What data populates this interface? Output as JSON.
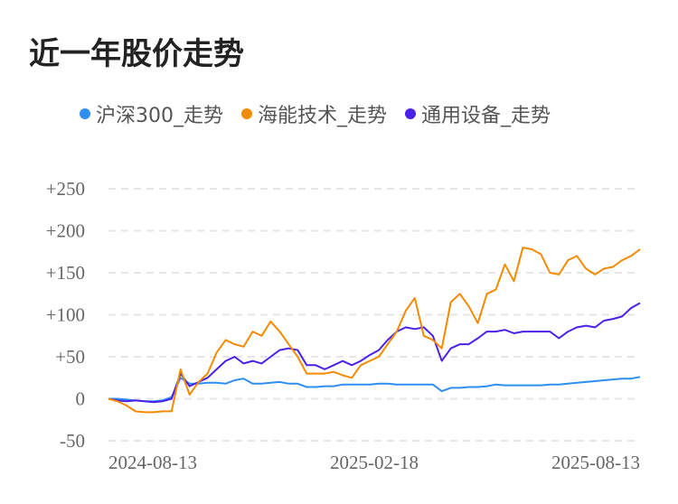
{
  "title": "近一年股价走势",
  "chart_data": {
    "type": "line",
    "title": "近一年股价走势",
    "xlabel": "",
    "ylabel": "",
    "ylim": [
      -50,
      250
    ],
    "yticks": [
      "+250",
      "+200",
      "+150",
      "+100",
      "+50",
      "0",
      "-50"
    ],
    "ytick_values": [
      250,
      200,
      150,
      100,
      50,
      0,
      -50
    ],
    "xticks": [
      "2024-08-13",
      "2025-02-18",
      "2025-08-13"
    ],
    "grid": true,
    "legend_position": "top-left",
    "series": [
      {
        "name": "沪深300_走势",
        "color": "#2f8ff0",
        "values": [
          0,
          0,
          -1,
          -2,
          -3,
          -3,
          -2,
          2,
          25,
          18,
          18,
          19,
          19,
          18,
          22,
          24,
          18,
          18,
          19,
          20,
          18,
          18,
          14,
          14,
          15,
          15,
          17,
          17,
          17,
          17,
          18,
          18,
          17,
          17,
          17,
          17,
          17,
          9,
          13,
          13,
          14,
          14,
          15,
          17,
          16,
          16,
          16,
          16,
          16,
          17,
          17,
          18,
          19,
          20,
          21,
          22,
          23,
          24,
          24,
          26
        ]
      },
      {
        "name": "海能技术_走势",
        "color": "#f28b00",
        "values": [
          0,
          -3,
          -8,
          -15,
          -16,
          -16,
          -15,
          -15,
          35,
          5,
          20,
          30,
          55,
          70,
          65,
          62,
          80,
          75,
          92,
          80,
          65,
          50,
          30,
          30,
          30,
          32,
          28,
          25,
          40,
          45,
          50,
          65,
          80,
          105,
          120,
          75,
          70,
          60,
          115,
          125,
          110,
          90,
          125,
          130,
          160,
          140,
          180,
          178,
          172,
          150,
          148,
          165,
          170,
          155,
          148,
          155,
          157,
          165,
          170,
          178
        ]
      },
      {
        "name": "通用设备_走势",
        "color": "#4b20e8",
        "values": [
          0,
          -2,
          -3,
          -2,
          -3,
          -4,
          -3,
          0,
          30,
          15,
          20,
          25,
          35,
          45,
          50,
          42,
          45,
          42,
          50,
          58,
          60,
          58,
          40,
          40,
          35,
          40,
          45,
          40,
          45,
          52,
          58,
          70,
          80,
          85,
          83,
          85,
          75,
          45,
          60,
          65,
          65,
          72,
          80,
          80,
          82,
          78,
          80,
          80,
          80,
          80,
          72,
          80,
          85,
          87,
          85,
          93,
          95,
          98,
          108,
          114
        ]
      }
    ]
  }
}
